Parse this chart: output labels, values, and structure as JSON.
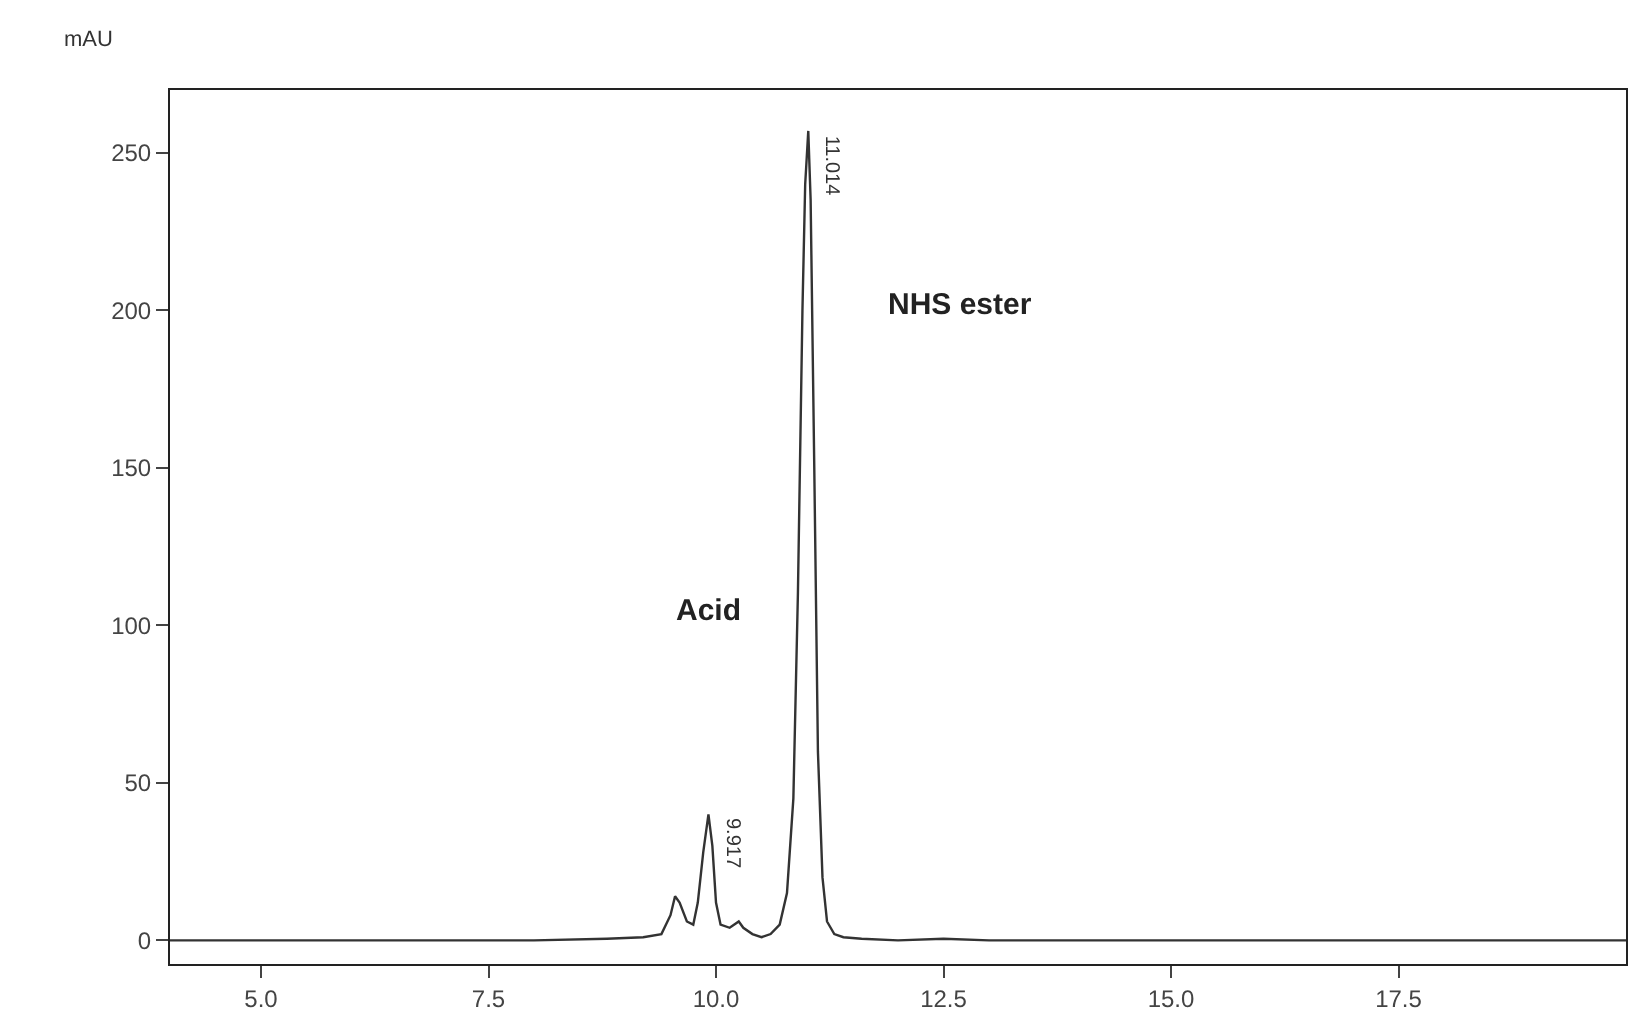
{
  "chart_data": {
    "type": "line",
    "ylabel": "mAU",
    "xlim": [
      4.0,
      20.0
    ],
    "ylim": [
      -7.5,
      270
    ],
    "xticks": [
      {
        "value": 5.0,
        "label": "5.0"
      },
      {
        "value": 7.5,
        "label": "7.5"
      },
      {
        "value": 10.0,
        "label": "10.0"
      },
      {
        "value": 12.5,
        "label": "12.5"
      },
      {
        "value": 15.0,
        "label": "15.0"
      },
      {
        "value": 17.5,
        "label": "17.5"
      }
    ],
    "yticks": [
      0,
      50,
      100,
      150,
      200,
      250
    ],
    "series": [
      {
        "color": "#333333",
        "x": [
          4.0,
          6.0,
          8.0,
          8.8,
          9.2,
          9.4,
          9.5,
          9.55,
          9.6,
          9.68,
          9.75,
          9.8,
          9.86,
          9.917,
          9.96,
          10.0,
          10.05,
          10.15,
          10.25,
          10.3,
          10.4,
          10.5,
          10.6,
          10.7,
          10.78,
          10.85,
          10.9,
          10.95,
          10.98,
          11.014,
          11.04,
          11.08,
          11.12,
          11.17,
          11.22,
          11.3,
          11.4,
          11.6,
          12.0,
          12.5,
          13.0,
          15.0,
          17.5,
          20.0
        ],
        "values": [
          0,
          0,
          0,
          0.5,
          1,
          2,
          8,
          14,
          12,
          6,
          5,
          12,
          28,
          40,
          30,
          12,
          5,
          4,
          6,
          4,
          2,
          1,
          2,
          5,
          15,
          45,
          110,
          200,
          240,
          257,
          235,
          150,
          60,
          20,
          6,
          2,
          1,
          0.5,
          0,
          0.5,
          0,
          0,
          0,
          0
        ]
      }
    ],
    "annotations": [
      "Acid",
      "NHS ester",
      {
        "text": "9.917",
        "x": 9.917,
        "y": 40
      },
      {
        "text": "11.014",
        "x": 11.014,
        "y": 257
      }
    ],
    "line_style": "solid",
    "marker": "none"
  }
}
